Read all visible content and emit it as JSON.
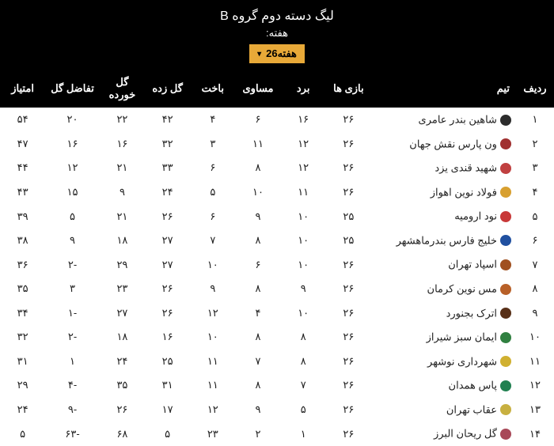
{
  "header": {
    "league_title": "لیگ دسته دوم گروه B",
    "week_label": "هفته:",
    "week_selected": "هفته26"
  },
  "columns": {
    "rank": "ردیف",
    "team": "تیم",
    "played": "بازی ها",
    "won": "برد",
    "drawn": "مساوی",
    "lost": "باخت",
    "gf": "گل زده",
    "ga": "گل خورده",
    "gd": "تفاضل گل",
    "pts": "امتیاز"
  },
  "rows": [
    {
      "rank": "۱",
      "team": "شاهین بندر عامری",
      "played": "۲۶",
      "won": "۱۶",
      "drawn": "۶",
      "lost": "۴",
      "gf": "۴۲",
      "ga": "۲۲",
      "gd": "۲۰",
      "pts": "۵۴",
      "logo": "#2c2c2c"
    },
    {
      "rank": "۲",
      "team": "ون پارس نقش جهان",
      "played": "۲۶",
      "won": "۱۲",
      "drawn": "۱۱",
      "lost": "۳",
      "gf": "۳۲",
      "ga": "۱۶",
      "gd": "۱۶",
      "pts": "۴۷",
      "logo": "#a03030"
    },
    {
      "rank": "۳",
      "team": "شهید قندی یزد",
      "played": "۲۶",
      "won": "۱۲",
      "drawn": "۸",
      "lost": "۶",
      "gf": "۳۳",
      "ga": "۲۱",
      "gd": "۱۲",
      "pts": "۴۴",
      "logo": "#c04040"
    },
    {
      "rank": "۴",
      "team": "فولاد نوین اهواز",
      "played": "۲۶",
      "won": "۱۱",
      "drawn": "۱۰",
      "lost": "۵",
      "gf": "۲۴",
      "ga": "۹",
      "gd": "۱۵",
      "pts": "۴۳",
      "logo": "#d8a030"
    },
    {
      "rank": "۵",
      "team": "نود ارومیه",
      "played": "۲۵",
      "won": "۱۰",
      "drawn": "۹",
      "lost": "۶",
      "gf": "۲۶",
      "ga": "۲۱",
      "gd": "۵",
      "pts": "۳۹",
      "logo": "#c83838"
    },
    {
      "rank": "۶",
      "team": "خلیج فارس بندرماهشهر",
      "played": "۲۵",
      "won": "۱۰",
      "drawn": "۸",
      "lost": "۷",
      "gf": "۲۷",
      "ga": "۱۸",
      "gd": "۹",
      "pts": "۳۸",
      "logo": "#2050a0"
    },
    {
      "rank": "۷",
      "team": "اسپاد تهران",
      "played": "۲۶",
      "won": "۱۰",
      "drawn": "۶",
      "lost": "۱۰",
      "gf": "۲۷",
      "ga": "۲۹",
      "gd": "-۲",
      "pts": "۳۶",
      "logo": "#a05020"
    },
    {
      "rank": "۸",
      "team": "مس نوین کرمان",
      "played": "۲۶",
      "won": "۹",
      "drawn": "۸",
      "lost": "۹",
      "gf": "۲۶",
      "ga": "۲۳",
      "gd": "۳",
      "pts": "۳۵",
      "logo": "#b86028"
    },
    {
      "rank": "۹",
      "team": "اترک بجنورد",
      "played": "۲۶",
      "won": "۱۰",
      "drawn": "۴",
      "lost": "۱۲",
      "gf": "۲۶",
      "ga": "۲۷",
      "gd": "-۱",
      "pts": "۳۴",
      "logo": "#583018"
    },
    {
      "rank": "۱۰",
      "team": "ایمان سبز شیراز",
      "played": "۲۶",
      "won": "۸",
      "drawn": "۸",
      "lost": "۱۰",
      "gf": "۱۶",
      "ga": "۱۸",
      "gd": "-۲",
      "pts": "۳۲",
      "logo": "#308040"
    },
    {
      "rank": "۱۱",
      "team": "شهرداری نوشهر",
      "played": "۲۶",
      "won": "۸",
      "drawn": "۷",
      "lost": "۱۱",
      "gf": "۲۵",
      "ga": "۲۴",
      "gd": "۱",
      "pts": "۳۱",
      "logo": "#d0b030"
    },
    {
      "rank": "۱۲",
      "team": "پاس همدان",
      "played": "۲۶",
      "won": "۷",
      "drawn": "۸",
      "lost": "۱۱",
      "gf": "۳۱",
      "ga": "۳۵",
      "gd": "-۴",
      "pts": "۲۹",
      "logo": "#208050"
    },
    {
      "rank": "۱۳",
      "team": "عقاب تهران",
      "played": "۲۶",
      "won": "۵",
      "drawn": "۹",
      "lost": "۱۲",
      "gf": "۱۷",
      "ga": "۲۶",
      "gd": "-۹",
      "pts": "۲۴",
      "logo": "#c8b040"
    },
    {
      "rank": "۱۴",
      "team": "گل ریحان البرز",
      "played": "۲۶",
      "won": "۱",
      "drawn": "۲",
      "lost": "۲۳",
      "gf": "۵",
      "ga": "۶۸",
      "gd": "-۶۳",
      "pts": "۵",
      "logo": "#a84858"
    }
  ],
  "styling": {
    "header_bg": "#000000",
    "header_text": "#ffffff",
    "selector_bg": "#e8a938",
    "selector_text": "#000000",
    "body_bg": "#ffffff",
    "row_text": "#222222",
    "font_size_header": 16,
    "font_size_cell": 13
  }
}
